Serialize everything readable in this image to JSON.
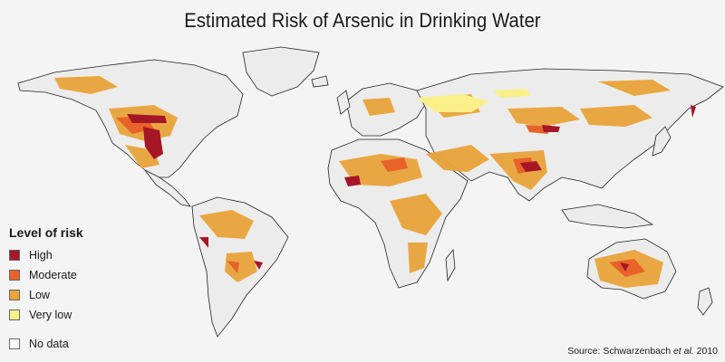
{
  "title": "Estimated Risk of Arsenic in Drinking Water",
  "legend": {
    "title": "Level of risk",
    "items": [
      {
        "label": "High",
        "color": "#a51627"
      },
      {
        "label": "Moderate",
        "color": "#e8622a"
      },
      {
        "label": "Low",
        "color": "#e9a43a"
      },
      {
        "label": "Very low",
        "color": "#faf08a"
      }
    ],
    "nodata": {
      "label": "No data",
      "color": "#ffffff"
    }
  },
  "source": {
    "prefix": "Source: Schwarzenbach ",
    "italic": "et al.",
    "suffix": " 2010"
  },
  "colors": {
    "land": "#ececec",
    "ocean": "#f4f4f4",
    "border": "#222222"
  }
}
